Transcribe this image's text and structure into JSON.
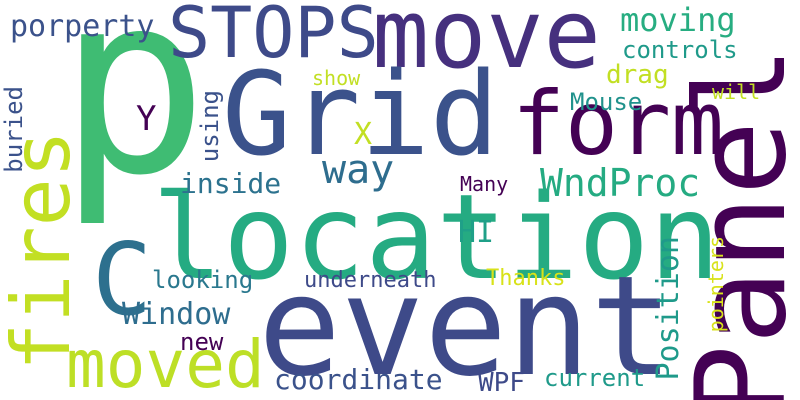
{
  "cloud": {
    "words": [
      {
        "text": "p",
        "color": "#3fbc73"
      },
      {
        "text": "STOPS",
        "color": "#3e4a89"
      },
      {
        "text": "move",
        "color": "#46307e"
      },
      {
        "text": "Grid",
        "color": "#3b528b"
      },
      {
        "text": "form",
        "color": "#440154"
      },
      {
        "text": "Panel",
        "color": "#440154"
      },
      {
        "text": "location",
        "color": "#25ab82"
      },
      {
        "text": "event",
        "color": "#3e4a89"
      },
      {
        "text": "fires",
        "color": "#c2df23"
      },
      {
        "text": "C",
        "color": "#2d708e"
      },
      {
        "text": "moved",
        "color": "#bddf26"
      },
      {
        "text": "WndProc",
        "color": "#25ab82"
      },
      {
        "text": "way",
        "color": "#2e6d8e"
      },
      {
        "text": "Window",
        "color": "#2e6d8e"
      },
      {
        "text": "coordinate",
        "color": "#3b528b"
      },
      {
        "text": "moving",
        "color": "#27ad81"
      },
      {
        "text": "porperty",
        "color": "#3b528b"
      },
      {
        "text": "controls",
        "color": "#1f9a8a"
      },
      {
        "text": "drag",
        "color": "#c2df23"
      },
      {
        "text": "Mouse",
        "color": "#20928c"
      },
      {
        "text": "will",
        "color": "#c2df23"
      },
      {
        "text": "show",
        "color": "#c2df23"
      },
      {
        "text": "using",
        "color": "#3b528b"
      },
      {
        "text": "buried",
        "color": "#3b528b"
      },
      {
        "text": "Y",
        "color": "#440154"
      },
      {
        "text": "X",
        "color": "#c2df23"
      },
      {
        "text": "inside",
        "color": "#2c728e"
      },
      {
        "text": "Many",
        "color": "#440154"
      },
      {
        "text": "HI",
        "color": "#1fa088"
      },
      {
        "text": "looking",
        "color": "#2a788e"
      },
      {
        "text": "underneath",
        "color": "#3e4a89"
      },
      {
        "text": "Thanks",
        "color": "#d8e219"
      },
      {
        "text": "Position",
        "color": "#1f9a8a"
      },
      {
        "text": "pointers",
        "color": "#d8e219"
      },
      {
        "text": "new",
        "color": "#440154"
      },
      {
        "text": "WPF",
        "color": "#3e4a89"
      },
      {
        "text": "current",
        "color": "#1f9a8a"
      }
    ]
  }
}
